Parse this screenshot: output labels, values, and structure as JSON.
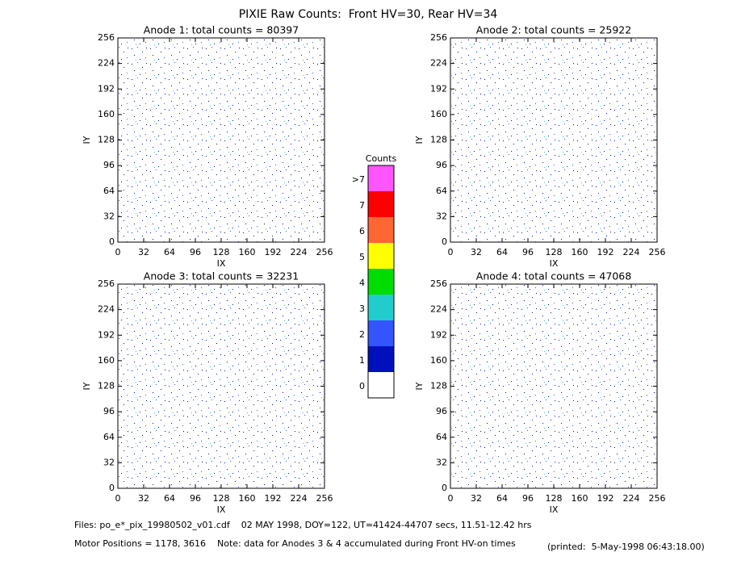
{
  "title": "PIXIE Raw Counts:  Front HV=30, Rear HV=34",
  "chart_data": [
    {
      "type": "heatmap",
      "title": "Anode 1: total counts = 80397",
      "xlabel": "IX",
      "ylabel": "IY",
      "xlim": [
        0,
        256
      ],
      "xticks": [
        0,
        32,
        64,
        96,
        128,
        160,
        192,
        224,
        256
      ],
      "ylim": [
        0,
        256
      ],
      "yticks": [
        0,
        32,
        64,
        96,
        128,
        160,
        192,
        224,
        256
      ]
    },
    {
      "type": "heatmap",
      "title": "Anode 2: total counts = 25922",
      "xlabel": "IX",
      "ylabel": "IY",
      "xlim": [
        0,
        256
      ],
      "xticks": [
        0,
        32,
        64,
        96,
        128,
        160,
        192,
        224,
        256
      ],
      "ylim": [
        0,
        256
      ],
      "yticks": [
        0,
        32,
        64,
        96,
        128,
        160,
        192,
        224,
        256
      ]
    },
    {
      "type": "heatmap",
      "title": "Anode 3: total counts = 32231",
      "xlabel": "IX",
      "ylabel": "IY",
      "xlim": [
        0,
        256
      ],
      "xticks": [
        0,
        32,
        64,
        96,
        128,
        160,
        192,
        224,
        256
      ],
      "ylim": [
        0,
        256
      ],
      "yticks": [
        0,
        32,
        64,
        96,
        128,
        160,
        192,
        224,
        256
      ]
    },
    {
      "type": "heatmap",
      "title": "Anode 4: total counts = 47068",
      "xlabel": "IX",
      "ylabel": "IY",
      "xlim": [
        0,
        256
      ],
      "xticks": [
        0,
        32,
        64,
        96,
        128,
        160,
        192,
        224,
        256
      ],
      "ylim": [
        0,
        256
      ],
      "yticks": [
        0,
        32,
        64,
        96,
        128,
        160,
        192,
        224,
        256
      ]
    }
  ],
  "colorbar": {
    "title": "Counts",
    "categories": [
      ">7",
      "7",
      "6",
      "5",
      "4",
      "3",
      "2",
      "1",
      "0"
    ],
    "colors": [
      "#ff55ff",
      "#ff0000",
      "#ff6633",
      "#ffff00",
      "#00dd00",
      "#22cccc",
      "#3355ff",
      "#0011bb",
      "#ffffff"
    ]
  },
  "footer": {
    "files": "Files: po_e*_pix_19980502_v01.cdf    02 MAY 1998, DOY=122, UT=41424-44707 secs, 11.51-12.42 hrs",
    "motor": "Motor Positions = 1178, 3616    Note: data for Anodes 3 & 4 accumulated during Front HV-on times",
    "printed": "(printed:  5-May-1998 06:43:18.00)"
  }
}
